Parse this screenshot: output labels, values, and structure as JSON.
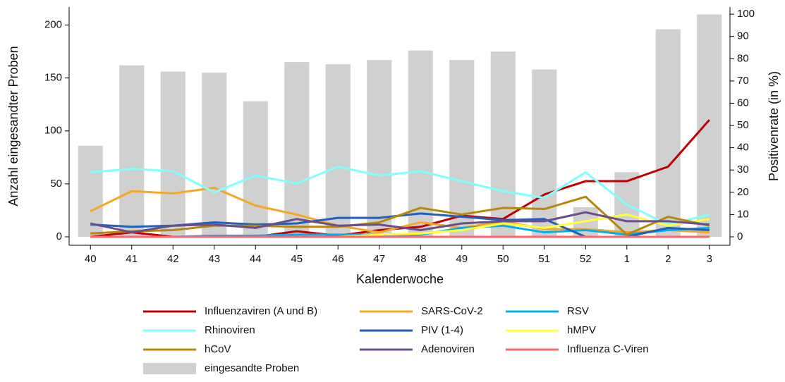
{
  "chart_data": {
    "type": "combo",
    "xlabel": "Kalenderwoche",
    "ylabel": "Anzahl eingesandter Proben",
    "y2label": "Positivenrate (in %)",
    "categories": [
      "40",
      "41",
      "42",
      "43",
      "44",
      "45",
      "46",
      "47",
      "48",
      "49",
      "50",
      "51",
      "52",
      "1",
      "2",
      "3"
    ],
    "ylim": [
      -8,
      217
    ],
    "yticks": [
      0,
      50,
      100,
      150,
      200
    ],
    "y2lim": [
      -3.8,
      103.2
    ],
    "y2ticks": [
      0,
      10,
      20,
      30,
      40,
      50,
      60,
      70,
      80,
      90,
      100
    ],
    "series": [
      {
        "name": "Influenzaviren (A und B)",
        "type": "line",
        "axis": "y2",
        "color": "#c00000",
        "values": [
          0,
          2,
          0,
          0,
          0,
          2.5,
          0.5,
          3,
          4.5,
          9.5,
          8,
          19,
          25,
          25,
          31.5,
          52.5
        ]
      },
      {
        "name": "SARS-CoV-2",
        "type": "line",
        "axis": "y2",
        "color": "#f5a623",
        "values": [
          11.5,
          20.5,
          19.5,
          22,
          14,
          10,
          5,
          2,
          6.5,
          4,
          7,
          3.5,
          3.5,
          2,
          3,
          2
        ]
      },
      {
        "name": "RSV",
        "type": "line",
        "axis": "y2",
        "color": "#00b0f0",
        "values": [
          0,
          0,
          0,
          0.5,
          0.5,
          1,
          1,
          1,
          1,
          4,
          5,
          2,
          3,
          1,
          3,
          4
        ]
      },
      {
        "name": "Rhinoviren",
        "type": "line",
        "axis": "y2",
        "color": "#80ffff",
        "values": [
          29,
          30.5,
          29.5,
          20,
          27.5,
          24,
          31.5,
          27.5,
          29.5,
          25,
          20.5,
          17.5,
          29,
          14.5,
          5.5,
          10
        ]
      },
      {
        "name": "PIV (1-4)",
        "type": "line",
        "axis": "y2",
        "color": "#1f5fbf",
        "values": [
          5.5,
          4.5,
          5,
          6.5,
          5.5,
          6,
          8.5,
          8.5,
          10.5,
          9,
          7.5,
          8,
          0,
          0,
          4,
          3
        ]
      },
      {
        "name": "hMPV",
        "type": "line",
        "axis": "y2",
        "color": "#ffff33",
        "values": [
          0,
          0,
          0,
          0,
          0,
          0,
          0,
          1,
          1.5,
          3,
          6,
          4,
          7,
          10,
          5,
          8
        ]
      },
      {
        "name": "hCoV",
        "type": "line",
        "axis": "y2",
        "color": "#b8860b",
        "values": [
          1.5,
          2.5,
          3,
          5,
          5,
          4.5,
          4.5,
          6.5,
          13,
          10,
          13,
          12.5,
          18,
          1,
          9,
          5
        ]
      },
      {
        "name": "Adenoviren",
        "type": "line",
        "axis": "y2",
        "color": "#6b4f8a",
        "values": [
          6,
          2,
          5,
          5.5,
          4,
          8,
          5,
          5.5,
          3,
          6,
          7,
          7,
          11,
          7,
          7,
          5.5
        ]
      },
      {
        "name": "Influenza C-Viren",
        "type": "line",
        "axis": "y2",
        "color": "#ff6666",
        "values": [
          0,
          0,
          0,
          0,
          0,
          0,
          0,
          0,
          0,
          0,
          0,
          0,
          0,
          0,
          0,
          0
        ]
      },
      {
        "name": "eingesandte Proben",
        "type": "bar",
        "axis": "y",
        "color": "#d0d0d0",
        "values": [
          86,
          162,
          156,
          155,
          128,
          165,
          163,
          167,
          176,
          167,
          175,
          158,
          28,
          61,
          196,
          210
        ]
      }
    ]
  }
}
